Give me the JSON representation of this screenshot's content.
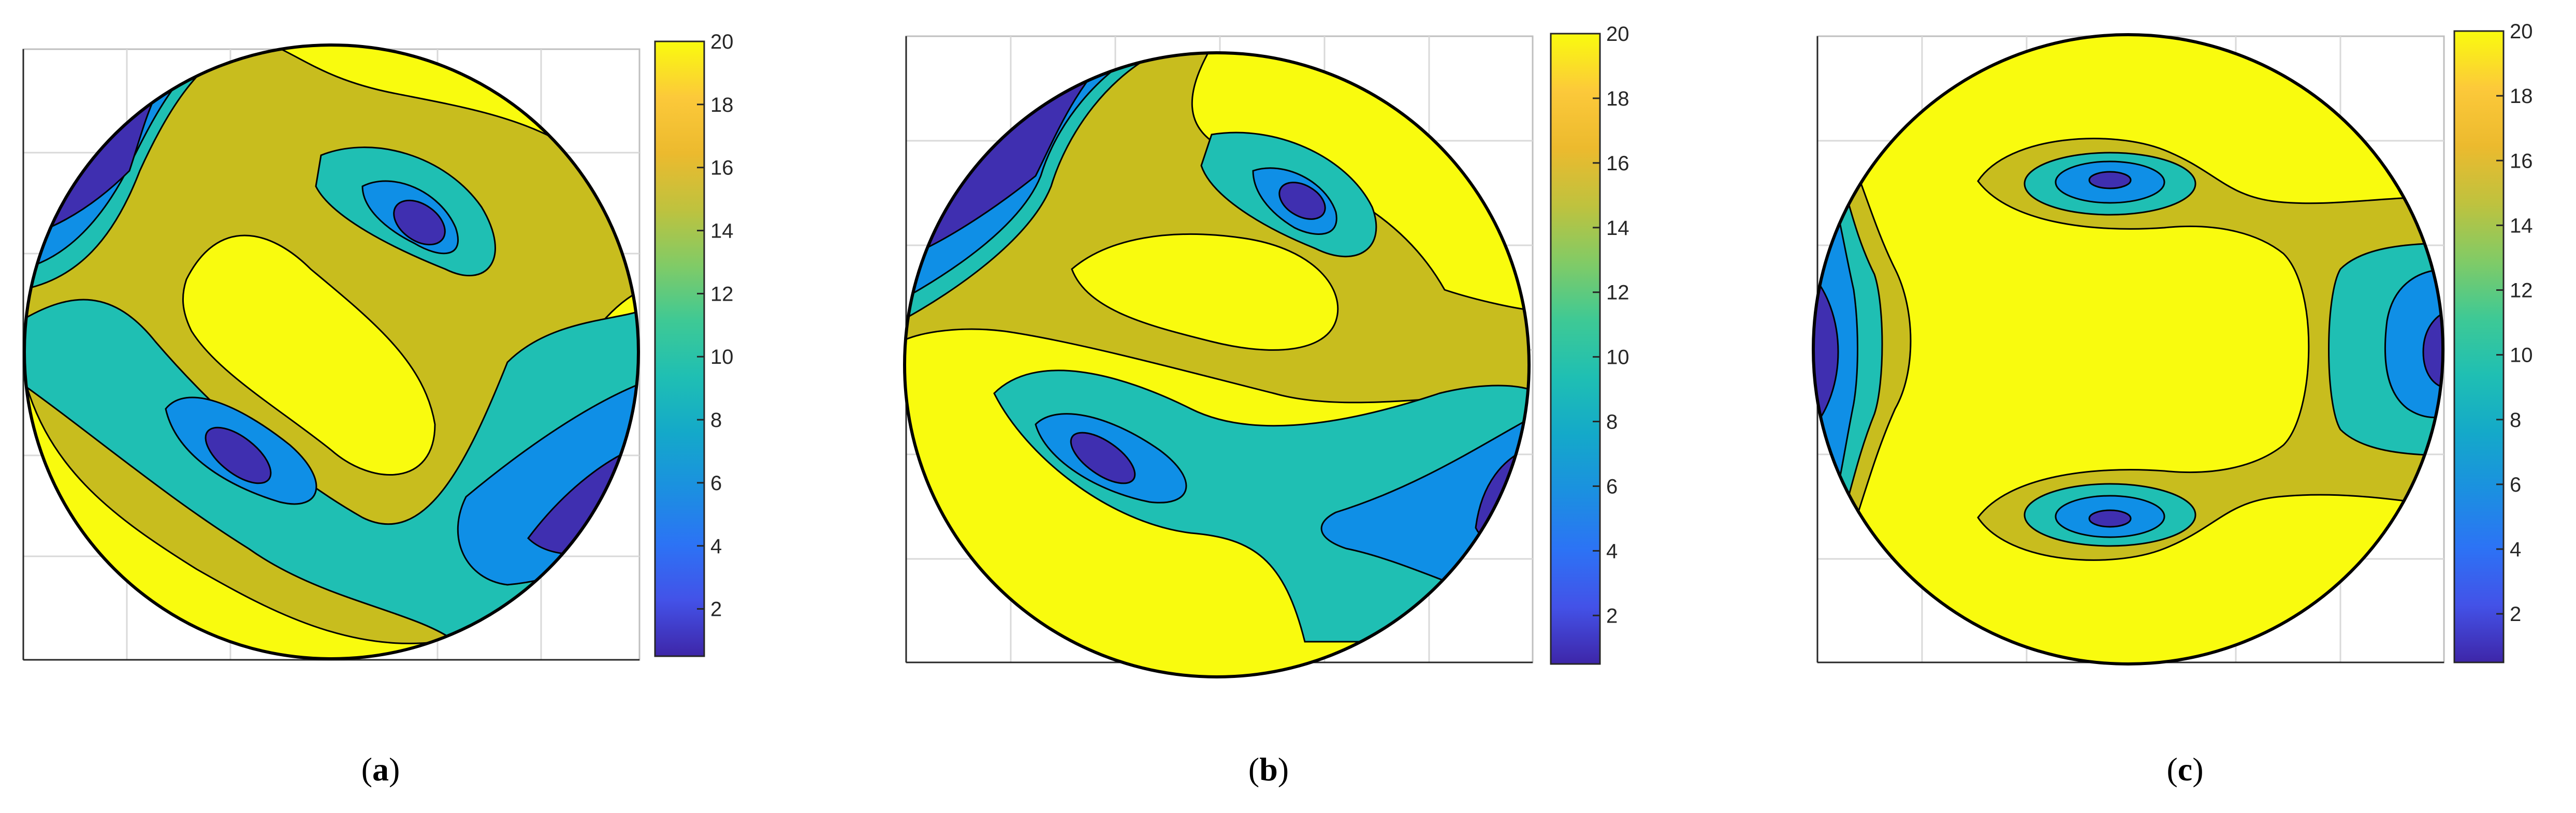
{
  "figure": {
    "panels": [
      {
        "id": "a",
        "caption_open": "(",
        "caption_letter": "a",
        "caption_close": ")"
      },
      {
        "id": "b",
        "caption_open": "(",
        "caption_letter": "b",
        "caption_close": ")"
      },
      {
        "id": "c",
        "caption_open": "(",
        "caption_letter": "c",
        "caption_close": ")"
      }
    ]
  },
  "chart_data": [
    {
      "type": "heatmap",
      "subtype": "filled-contour",
      "panel": "a",
      "domain": "circular",
      "colorbar": {
        "min": 0.5,
        "max": 20,
        "ticks": [
          2,
          4,
          6,
          8,
          10,
          12,
          14,
          16,
          18,
          20
        ],
        "tick_labels": [
          "2",
          "4",
          "6",
          "8",
          "10",
          "12",
          "14",
          "16",
          "18",
          "20"
        ],
        "colormap": "parula"
      },
      "contour_levels": [
        2.5,
        5,
        7.5,
        10,
        15
      ],
      "grid": true,
      "features": [
        {
          "kind": "minimum",
          "location": "upper-left edge",
          "value": 1
        },
        {
          "kind": "minimum",
          "location": "upper-right interior",
          "value": 1.5
        },
        {
          "kind": "minimum",
          "location": "lower-left interior",
          "value": 1.5
        },
        {
          "kind": "minimum",
          "location": "lower-right edge",
          "value": 2
        },
        {
          "kind": "plateau",
          "location": "center",
          "value": 20
        }
      ]
    },
    {
      "type": "heatmap",
      "subtype": "filled-contour",
      "panel": "b",
      "domain": "circular",
      "colorbar": {
        "min": 0.5,
        "max": 20,
        "ticks": [
          2,
          4,
          6,
          8,
          10,
          12,
          14,
          16,
          18,
          20
        ],
        "tick_labels": [
          "2",
          "4",
          "6",
          "8",
          "10",
          "12",
          "14",
          "16",
          "18",
          "20"
        ],
        "colormap": "parula"
      },
      "contour_levels": [
        2.5,
        5,
        7.5,
        10,
        15
      ],
      "grid": true,
      "features": [
        {
          "kind": "minimum",
          "location": "upper-left edge",
          "value": 1
        },
        {
          "kind": "minimum",
          "location": "upper-right interior",
          "value": 1.5
        },
        {
          "kind": "minimum",
          "location": "lower-left interior",
          "value": 1.5
        },
        {
          "kind": "minimum",
          "location": "lower-right edge",
          "value": 2
        },
        {
          "kind": "plateau",
          "location": "center",
          "value": 20
        }
      ]
    },
    {
      "type": "heatmap",
      "subtype": "filled-contour",
      "panel": "c",
      "domain": "circular",
      "colorbar": {
        "min": 0.5,
        "max": 20,
        "ticks": [
          2,
          4,
          6,
          8,
          10,
          12,
          14,
          16,
          18,
          20
        ],
        "tick_labels": [
          "2",
          "4",
          "6",
          "8",
          "10",
          "12",
          "14",
          "16",
          "18",
          "20"
        ],
        "colormap": "parula"
      },
      "contour_levels": [
        2.5,
        5,
        7.5,
        10,
        15
      ],
      "grid": true,
      "features": [
        {
          "kind": "minimum",
          "location": "left edge",
          "value": 1
        },
        {
          "kind": "minimum",
          "location": "upper interior",
          "value": 1.5
        },
        {
          "kind": "minimum",
          "location": "lower interior",
          "value": 1.5
        },
        {
          "kind": "minimum",
          "location": "right edge",
          "value": 2
        },
        {
          "kind": "plateau",
          "location": "center",
          "value": 20
        }
      ]
    }
  ]
}
